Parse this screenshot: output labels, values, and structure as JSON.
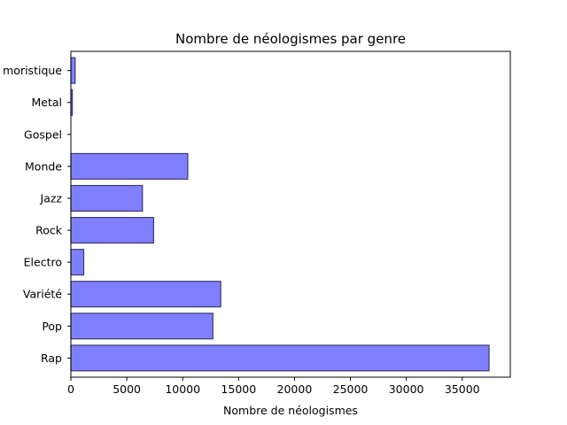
{
  "chart_data": {
    "type": "bar",
    "orientation": "horizontal",
    "title": "Nombre de néologismes par genre",
    "xlabel": "Nombre de néologismes",
    "ylabel": "",
    "categories": [
      "Rap",
      "Pop",
      "Variété",
      "Electro",
      "Rock",
      "Jazz",
      "Monde",
      "Gospel",
      "Metal",
      "Humoristique"
    ],
    "category_labels_visible": [
      "Rap",
      "Pop",
      "Variété",
      "Electro",
      "Rock",
      "Jazz",
      "Monde",
      "Gospel",
      "Metal",
      "moristique"
    ],
    "values": [
      37400,
      12700,
      13400,
      1150,
      7400,
      6400,
      10450,
      0,
      130,
      380
    ],
    "xlim": [
      0,
      39300
    ],
    "xticks": [
      0,
      5000,
      10000,
      15000,
      20000,
      25000,
      30000,
      35000
    ],
    "grid": false,
    "legend": "none",
    "bar_color": "#8080ff",
    "bar_edge_color": "#3a3a70"
  }
}
